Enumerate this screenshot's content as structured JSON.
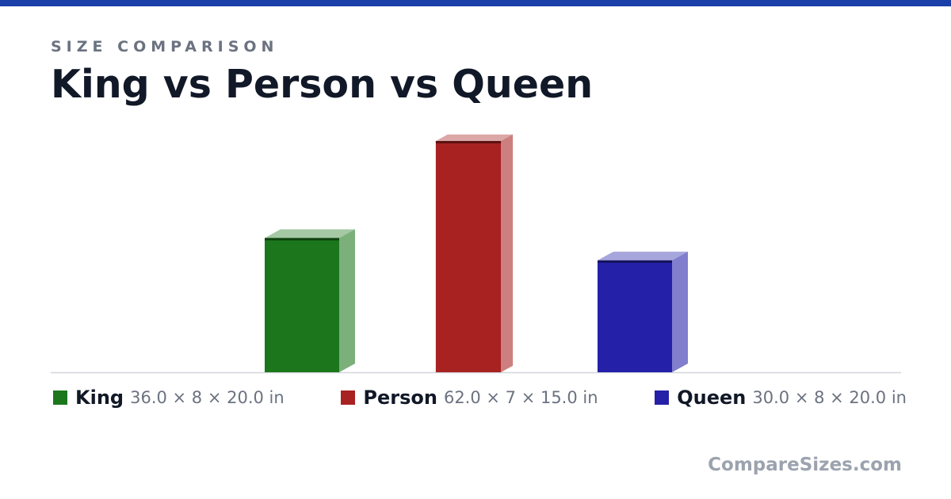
{
  "chart_data": {
    "type": "bar3d",
    "subtitle": "SIZE COMPARISON",
    "title": "King vs Person vs Queen",
    "categories": [
      "King",
      "Person",
      "Queen"
    ],
    "values": [
      36,
      62,
      30
    ],
    "widths": [
      8,
      7,
      8
    ],
    "depths": [
      20,
      15,
      20
    ],
    "value_labels": [
      "36.0 × 8 × 20.0 in",
      "62.0 × 7 × 15.0 in",
      "30.0 × 8 × 20.0 in"
    ],
    "colors": [
      "#1c771c",
      "#a82222",
      "#2420a8"
    ],
    "footer": "CompareSizes.com"
  }
}
